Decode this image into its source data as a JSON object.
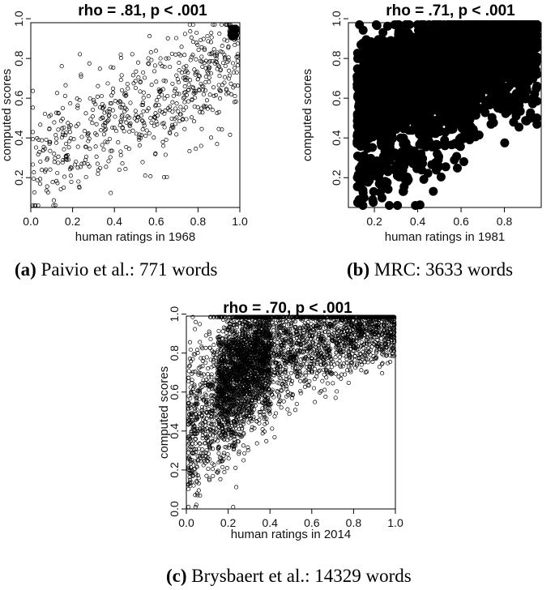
{
  "captions": [
    {
      "label": "(a)",
      "text": "Paivio et al.: 771 words"
    },
    {
      "label": "(b)",
      "text": "MRC: 3633 words"
    },
    {
      "label": "(c)",
      "text": "Brysbaert et al.: 14329 words"
    }
  ],
  "chart_data": [
    {
      "type": "scatter",
      "title": "rho = .81, p < .001",
      "xlabel": "human ratings in 1968",
      "ylabel": "computed scores",
      "xlim": [
        0.0,
        1.0
      ],
      "ylim": [
        0.05,
        0.98
      ],
      "xticks": [
        "0.0",
        "0.2",
        "0.4",
        "0.6",
        "0.8",
        "1.0"
      ],
      "yticks": [
        "0.2",
        "0.4",
        "0.6",
        "0.8",
        "1.0"
      ],
      "marker": "open-circle",
      "n": 771,
      "grid": false,
      "trend": "positive; points spread widely, dense cluster near (0.97, 0.93)"
    },
    {
      "type": "scatter",
      "title": "rho = .71, p < .001",
      "xlabel": "human ratings in 1981",
      "ylabel": "computed scores",
      "xlim": [
        0.08,
        0.97
      ],
      "ylim": [
        0.05,
        0.98
      ],
      "xticks": [
        "0.2",
        "0.4",
        "0.6",
        "0.8"
      ],
      "yticks": [
        "0.2",
        "0.4",
        "0.6",
        "0.8",
        "1.0"
      ],
      "marker": "filled-circle",
      "n": 3633,
      "grid": false,
      "trend": "positive; very dense filled region in upper area, sparse low-right tail"
    },
    {
      "type": "scatter",
      "title": "rho = .70, p < .001",
      "xlabel": "human ratings in 2014",
      "ylabel": "computed scores",
      "xlim": [
        0.0,
        1.0
      ],
      "ylim": [
        0.0,
        0.99
      ],
      "xticks": [
        "0.0",
        "0.2",
        "0.4",
        "0.6",
        "0.8",
        "1.0"
      ],
      "yticks": [
        "0.0",
        "0.2",
        "0.4",
        "0.6",
        "0.8",
        "1.0"
      ],
      "marker": "open-circle",
      "n": 14329,
      "grid": false,
      "trend": "positive, concave; saturates near 0.95 for high ratings"
    }
  ]
}
